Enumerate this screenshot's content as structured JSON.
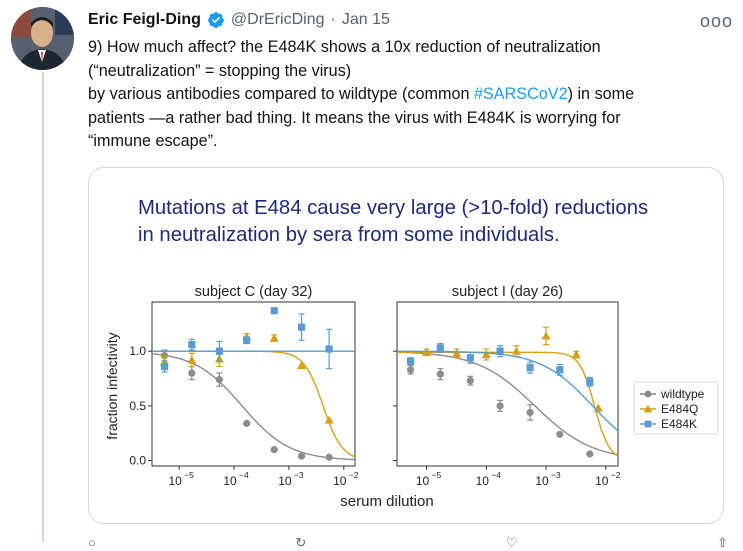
{
  "author": {
    "name": "Eric Feigl-Ding",
    "handle": "@DrEricDing",
    "separator": "·",
    "date": "Jan 15",
    "more_label": "ooo"
  },
  "tweet": {
    "line1": "9) How much affect? the E484K shows a 10x reduction of neutralization",
    "line2": "(“neutralization” = stopping the virus)",
    "line3_pre": "by various antibodies compared to wildtype (common ",
    "hashtag": "#SARSCoV2",
    "line3_post": ") in some",
    "line4": "patients —a rather bad thing. It means the virus with E484K is worrying for",
    "line5": "“immune escape”."
  },
  "figure": {
    "title_line1": "Mutations at E484 cause very large (>10-fold) reductions",
    "title_line2": "in neutralization by sera from some individuals.",
    "xlabel": "serum dilution",
    "ylabel": "fraction infectivity",
    "legend": [
      "wildtype",
      "E484Q",
      "E484K"
    ],
    "colors": {
      "wildtype": "#8c8c8c",
      "E484Q": "#d4a017",
      "E484K": "#5b9bd5"
    }
  },
  "chart_data": [
    {
      "type": "scatter",
      "title": "subject C (day 32)",
      "xlabel": "serum dilution",
      "ylabel": "fraction infectivity",
      "xscale": "log",
      "xlim": [
        3.2e-06,
        0.016
      ],
      "ylim": [
        -0.05,
        1.45
      ],
      "xticks": [
        1e-05,
        0.0001,
        0.001,
        0.01
      ],
      "xtick_labels": [
        "10",
        "10",
        "10",
        "10"
      ],
      "xtick_exponents": [
        "−5",
        "−4",
        "−3",
        "−2"
      ],
      "yticks": [
        0.0,
        0.5,
        1.0
      ],
      "ytick_labels": [
        "0.0",
        "0.5",
        "1.0"
      ],
      "series": [
        {
          "name": "wildtype",
          "marker": "circle",
          "x": [
            5.4e-06,
            1.7e-05,
            5.4e-05,
            0.00017,
            0.00054,
            0.0017,
            0.0054
          ],
          "y": [
            0.96,
            0.8,
            0.74,
            0.34,
            0.1,
            0.04,
            0.03
          ],
          "err": [
            0.05,
            0.06,
            0.06,
            0.0,
            0.0,
            0.0,
            0.0
          ],
          "fit": {
            "ic50": 0.00014,
            "hill": 1.0,
            "top": 1.0
          }
        },
        {
          "name": "E484Q",
          "marker": "triangle",
          "x": [
            5.4e-06,
            1.7e-05,
            5.4e-05,
            0.00017,
            0.00054,
            0.0017,
            0.0054
          ],
          "y": [
            0.9,
            0.92,
            0.93,
            1.13,
            1.12,
            0.87,
            0.37
          ],
          "err": [
            0.05,
            0.06,
            0.07,
            0.03,
            0.03,
            0.0,
            0.0
          ],
          "fit": {
            "ic50": 0.0042,
            "hill": 2.5,
            "top": 1.0
          }
        },
        {
          "name": "E484K",
          "marker": "square",
          "x": [
            5.4e-06,
            1.7e-05,
            5.4e-05,
            0.00017,
            0.00054,
            0.0017,
            0.0054
          ],
          "y": [
            0.86,
            1.06,
            1.0,
            1.1,
            1.37,
            1.22,
            1.02
          ],
          "err": [
            0.05,
            0.05,
            0.09,
            0.03,
            0.0,
            0.12,
            0.18
          ],
          "fit": {
            "flat": 1.0
          }
        }
      ]
    },
    {
      "type": "scatter",
      "title": "subject I (day 26)",
      "xlabel": "serum dilution",
      "ylabel": "fraction infectivity",
      "xscale": "log",
      "xlim": [
        3.2e-06,
        0.016
      ],
      "ylim": [
        -0.05,
        1.45
      ],
      "xticks": [
        1e-05,
        0.0001,
        0.001,
        0.01
      ],
      "xtick_labels": [
        "10",
        "10",
        "10",
        "10"
      ],
      "xtick_exponents": [
        "−5",
        "−4",
        "−3",
        "−2"
      ],
      "yticks": [
        0.0,
        0.5,
        1.0
      ],
      "ytick_labels": [
        "0.0",
        "0.5",
        "1.0"
      ],
      "series": [
        {
          "name": "wildtype",
          "marker": "circle",
          "x": [
            5.4e-06,
            1.7e-05,
            5.4e-05,
            0.00017,
            0.00054,
            0.0017,
            0.0054
          ],
          "y": [
            0.83,
            0.79,
            0.73,
            0.5,
            0.44,
            0.24,
            0.06
          ],
          "err": [
            0.04,
            0.05,
            0.04,
            0.05,
            0.07,
            0.0,
            0.0
          ],
          "fit": {
            "ic50": 0.00065,
            "hill": 0.9,
            "top": 1.0
          }
        },
        {
          "name": "E484Q",
          "marker": "triangle",
          "x": [
            1e-05,
            3.2e-05,
            0.0001,
            0.00032,
            0.001,
            0.0032,
            0.0075
          ],
          "y": [
            0.99,
            0.98,
            0.97,
            1.0,
            1.14,
            0.97,
            0.48
          ],
          "err": [
            0.03,
            0.04,
            0.05,
            0.05,
            0.08,
            0.03,
            0.0
          ],
          "fit": {
            "ic50": 0.0065,
            "hill": 3.5,
            "top": 0.99
          }
        },
        {
          "name": "E484K",
          "marker": "square",
          "x": [
            5.4e-06,
            1.7e-05,
            5.4e-05,
            0.00017,
            0.00054,
            0.0017,
            0.0054
          ],
          "y": [
            0.91,
            1.03,
            0.94,
            1.0,
            0.85,
            0.83,
            0.72
          ],
          "err": [
            0.03,
            0.04,
            0.05,
            0.05,
            0.05,
            0.05,
            0.04
          ],
          "fit": {
            "ic50": 0.006,
            "hill": 1.0,
            "top": 1.0
          }
        }
      ]
    }
  ]
}
